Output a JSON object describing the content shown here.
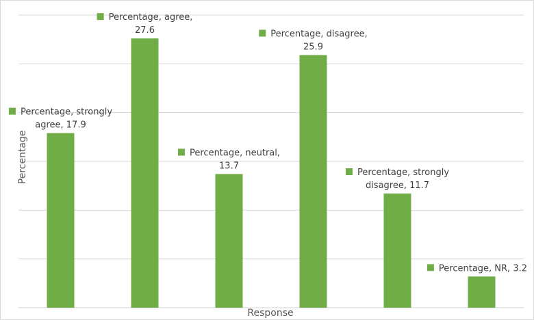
{
  "chart_data": {
    "type": "bar",
    "categories": [
      "strongly agree",
      "agree",
      "neutral",
      "disagree",
      "strongly disagree",
      "NR"
    ],
    "series": [
      {
        "name": "Percentage",
        "values": [
          17.9,
          27.6,
          13.7,
          25.9,
          11.7,
          3.2
        ],
        "color": "#70ad47"
      }
    ],
    "data_labels": [
      [
        "Percentage, strongly",
        "agree, 17.9"
      ],
      [
        "Percentage, agree,",
        "27.6"
      ],
      [
        "Percentage, neutral,",
        "13.7"
      ],
      [
        "Percentage, disagree,",
        "25.9"
      ],
      [
        "Percentage, strongly",
        "disagree, 11.7"
      ],
      [
        "Percentage, NR, 3.2"
      ]
    ],
    "xlabel": "Response",
    "ylabel": "Percentage",
    "ylim": [
      0,
      30
    ],
    "grid": true,
    "gridline_step": 5,
    "gridline_color": "#d9d9d9"
  }
}
